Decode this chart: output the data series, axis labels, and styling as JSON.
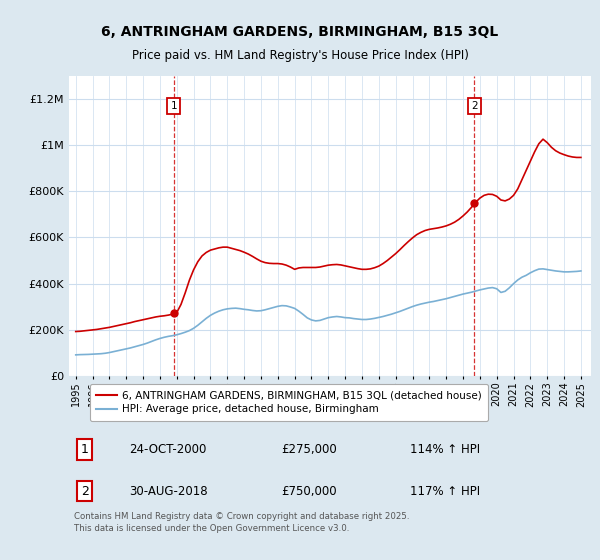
{
  "title": "6, ANTRINGHAM GARDENS, BIRMINGHAM, B15 3QL",
  "subtitle": "Price paid vs. HM Land Registry's House Price Index (HPI)",
  "ylabel_ticks": [
    "£0",
    "£200K",
    "£400K",
    "£600K",
    "£800K",
    "£1M",
    "£1.2M"
  ],
  "ytick_vals": [
    0,
    200000,
    400000,
    600000,
    800000,
    1000000,
    1200000
  ],
  "ylim": [
    0,
    1300000
  ],
  "xlim_start": 1994.6,
  "xlim_end": 2025.6,
  "fig_bg_color": "#dce8f0",
  "plot_bg_color": "#ffffff",
  "grid_color": "#ccddee",
  "red_color": "#cc0000",
  "blue_color": "#7ab0d4",
  "marker1_x": 2000.82,
  "marker1_y": 275000,
  "marker2_x": 2018.66,
  "marker2_y": 750000,
  "legend_label_red": "6, ANTRINGHAM GARDENS, BIRMINGHAM, B15 3QL (detached house)",
  "legend_label_blue": "HPI: Average price, detached house, Birmingham",
  "ann1_date": "24-OCT-2000",
  "ann1_price": "£275,000",
  "ann1_hpi": "114% ↑ HPI",
  "ann2_date": "30-AUG-2018",
  "ann2_price": "£750,000",
  "ann2_hpi": "117% ↑ HPI",
  "footer": "Contains HM Land Registry data © Crown copyright and database right 2025.\nThis data is licensed under the Open Government Licence v3.0.",
  "hpi_data_x": [
    1995.0,
    1995.25,
    1995.5,
    1995.75,
    1996.0,
    1996.25,
    1996.5,
    1996.75,
    1997.0,
    1997.25,
    1997.5,
    1997.75,
    1998.0,
    1998.25,
    1998.5,
    1998.75,
    1999.0,
    1999.25,
    1999.5,
    1999.75,
    2000.0,
    2000.25,
    2000.5,
    2000.75,
    2001.0,
    2001.25,
    2001.5,
    2001.75,
    2002.0,
    2002.25,
    2002.5,
    2002.75,
    2003.0,
    2003.25,
    2003.5,
    2003.75,
    2004.0,
    2004.25,
    2004.5,
    2004.75,
    2005.0,
    2005.25,
    2005.5,
    2005.75,
    2006.0,
    2006.25,
    2006.5,
    2006.75,
    2007.0,
    2007.25,
    2007.5,
    2007.75,
    2008.0,
    2008.25,
    2008.5,
    2008.75,
    2009.0,
    2009.25,
    2009.5,
    2009.75,
    2010.0,
    2010.25,
    2010.5,
    2010.75,
    2011.0,
    2011.25,
    2011.5,
    2011.75,
    2012.0,
    2012.25,
    2012.5,
    2012.75,
    2013.0,
    2013.25,
    2013.5,
    2013.75,
    2014.0,
    2014.25,
    2014.5,
    2014.75,
    2015.0,
    2015.25,
    2015.5,
    2015.75,
    2016.0,
    2016.25,
    2016.5,
    2016.75,
    2017.0,
    2017.25,
    2017.5,
    2017.75,
    2018.0,
    2018.25,
    2018.5,
    2018.75,
    2019.0,
    2019.25,
    2019.5,
    2019.75,
    2020.0,
    2020.25,
    2020.5,
    2020.75,
    2021.0,
    2021.25,
    2021.5,
    2021.75,
    2022.0,
    2022.25,
    2022.5,
    2022.75,
    2023.0,
    2023.25,
    2023.5,
    2023.75,
    2024.0,
    2024.25,
    2024.5,
    2024.75,
    2025.0
  ],
  "hpi_data_y": [
    92000,
    93000,
    93500,
    94000,
    95000,
    96000,
    97000,
    99000,
    102000,
    106000,
    110000,
    114000,
    118000,
    122000,
    127000,
    132000,
    137000,
    143000,
    150000,
    157000,
    163000,
    168000,
    172000,
    175000,
    179000,
    184000,
    190000,
    197000,
    207000,
    220000,
    235000,
    250000,
    263000,
    273000,
    281000,
    287000,
    291000,
    293000,
    294000,
    292000,
    289000,
    287000,
    284000,
    282000,
    283000,
    287000,
    292000,
    297000,
    302000,
    305000,
    304000,
    299000,
    293000,
    281000,
    267000,
    252000,
    243000,
    239000,
    241000,
    247000,
    253000,
    256000,
    258000,
    256000,
    253000,
    252000,
    249000,
    247000,
    245000,
    245000,
    247000,
    250000,
    254000,
    258000,
    263000,
    268000,
    274000,
    280000,
    287000,
    294000,
    301000,
    307000,
    312000,
    316000,
    320000,
    323000,
    327000,
    331000,
    335000,
    340000,
    345000,
    350000,
    355000,
    359000,
    363000,
    368000,
    373000,
    377000,
    381000,
    383000,
    378000,
    362000,
    367000,
    382000,
    400000,
    416000,
    428000,
    436000,
    447000,
    456000,
    463000,
    464000,
    461000,
    458000,
    455000,
    453000,
    451000,
    451000,
    452000,
    453000,
    455000
  ],
  "price_data_x": [
    1995.0,
    1995.25,
    1995.5,
    1995.75,
    1996.0,
    1996.25,
    1996.5,
    1996.75,
    1997.0,
    1997.25,
    1997.5,
    1997.75,
    1998.0,
    1998.25,
    1998.5,
    1998.75,
    1999.0,
    1999.25,
    1999.5,
    1999.75,
    2000.0,
    2000.25,
    2000.5,
    2000.75,
    2001.0,
    2001.25,
    2001.5,
    2001.75,
    2002.0,
    2002.25,
    2002.5,
    2002.75,
    2003.0,
    2003.25,
    2003.5,
    2003.75,
    2004.0,
    2004.25,
    2004.5,
    2004.75,
    2005.0,
    2005.25,
    2005.5,
    2005.75,
    2006.0,
    2006.25,
    2006.5,
    2006.75,
    2007.0,
    2007.25,
    2007.5,
    2007.75,
    2008.0,
    2008.25,
    2008.5,
    2008.75,
    2009.0,
    2009.25,
    2009.5,
    2009.75,
    2010.0,
    2010.25,
    2010.5,
    2010.75,
    2011.0,
    2011.25,
    2011.5,
    2011.75,
    2012.0,
    2012.25,
    2012.5,
    2012.75,
    2013.0,
    2013.25,
    2013.5,
    2013.75,
    2014.0,
    2014.25,
    2014.5,
    2014.75,
    2015.0,
    2015.25,
    2015.5,
    2015.75,
    2016.0,
    2016.25,
    2016.5,
    2016.75,
    2017.0,
    2017.25,
    2017.5,
    2017.75,
    2018.0,
    2018.25,
    2018.5,
    2018.75,
    2019.0,
    2019.25,
    2019.5,
    2019.75,
    2020.0,
    2020.25,
    2020.5,
    2020.75,
    2021.0,
    2021.25,
    2021.5,
    2021.75,
    2022.0,
    2022.25,
    2022.5,
    2022.75,
    2023.0,
    2023.25,
    2023.5,
    2023.75,
    2024.0,
    2024.25,
    2024.5,
    2024.75,
    2025.0
  ],
  "price_data_y": [
    193000,
    194000,
    196000,
    198000,
    200000,
    202000,
    205000,
    208000,
    211000,
    215000,
    219000,
    223000,
    227000,
    231000,
    236000,
    240000,
    244000,
    248000,
    252000,
    256000,
    259000,
    261000,
    264000,
    268000,
    275000,
    310000,
    360000,
    415000,
    460000,
    495000,
    520000,
    535000,
    545000,
    550000,
    555000,
    558000,
    558000,
    553000,
    548000,
    543000,
    536000,
    528000,
    518000,
    507000,
    497000,
    491000,
    488000,
    487000,
    487000,
    485000,
    480000,
    472000,
    462000,
    468000,
    470000,
    470000,
    470000,
    470000,
    472000,
    476000,
    480000,
    482000,
    483000,
    481000,
    477000,
    473000,
    469000,
    465000,
    462000,
    462000,
    464000,
    469000,
    476000,
    487000,
    500000,
    515000,
    530000,
    547000,
    565000,
    582000,
    598000,
    612000,
    622000,
    630000,
    635000,
    638000,
    641000,
    645000,
    650000,
    657000,
    666000,
    678000,
    693000,
    710000,
    730000,
    752000,
    770000,
    782000,
    787000,
    786000,
    778000,
    762000,
    758000,
    766000,
    782000,
    810000,
    850000,
    890000,
    930000,
    970000,
    1005000,
    1025000,
    1010000,
    990000,
    975000,
    965000,
    958000,
    952000,
    948000,
    946000,
    946000
  ]
}
